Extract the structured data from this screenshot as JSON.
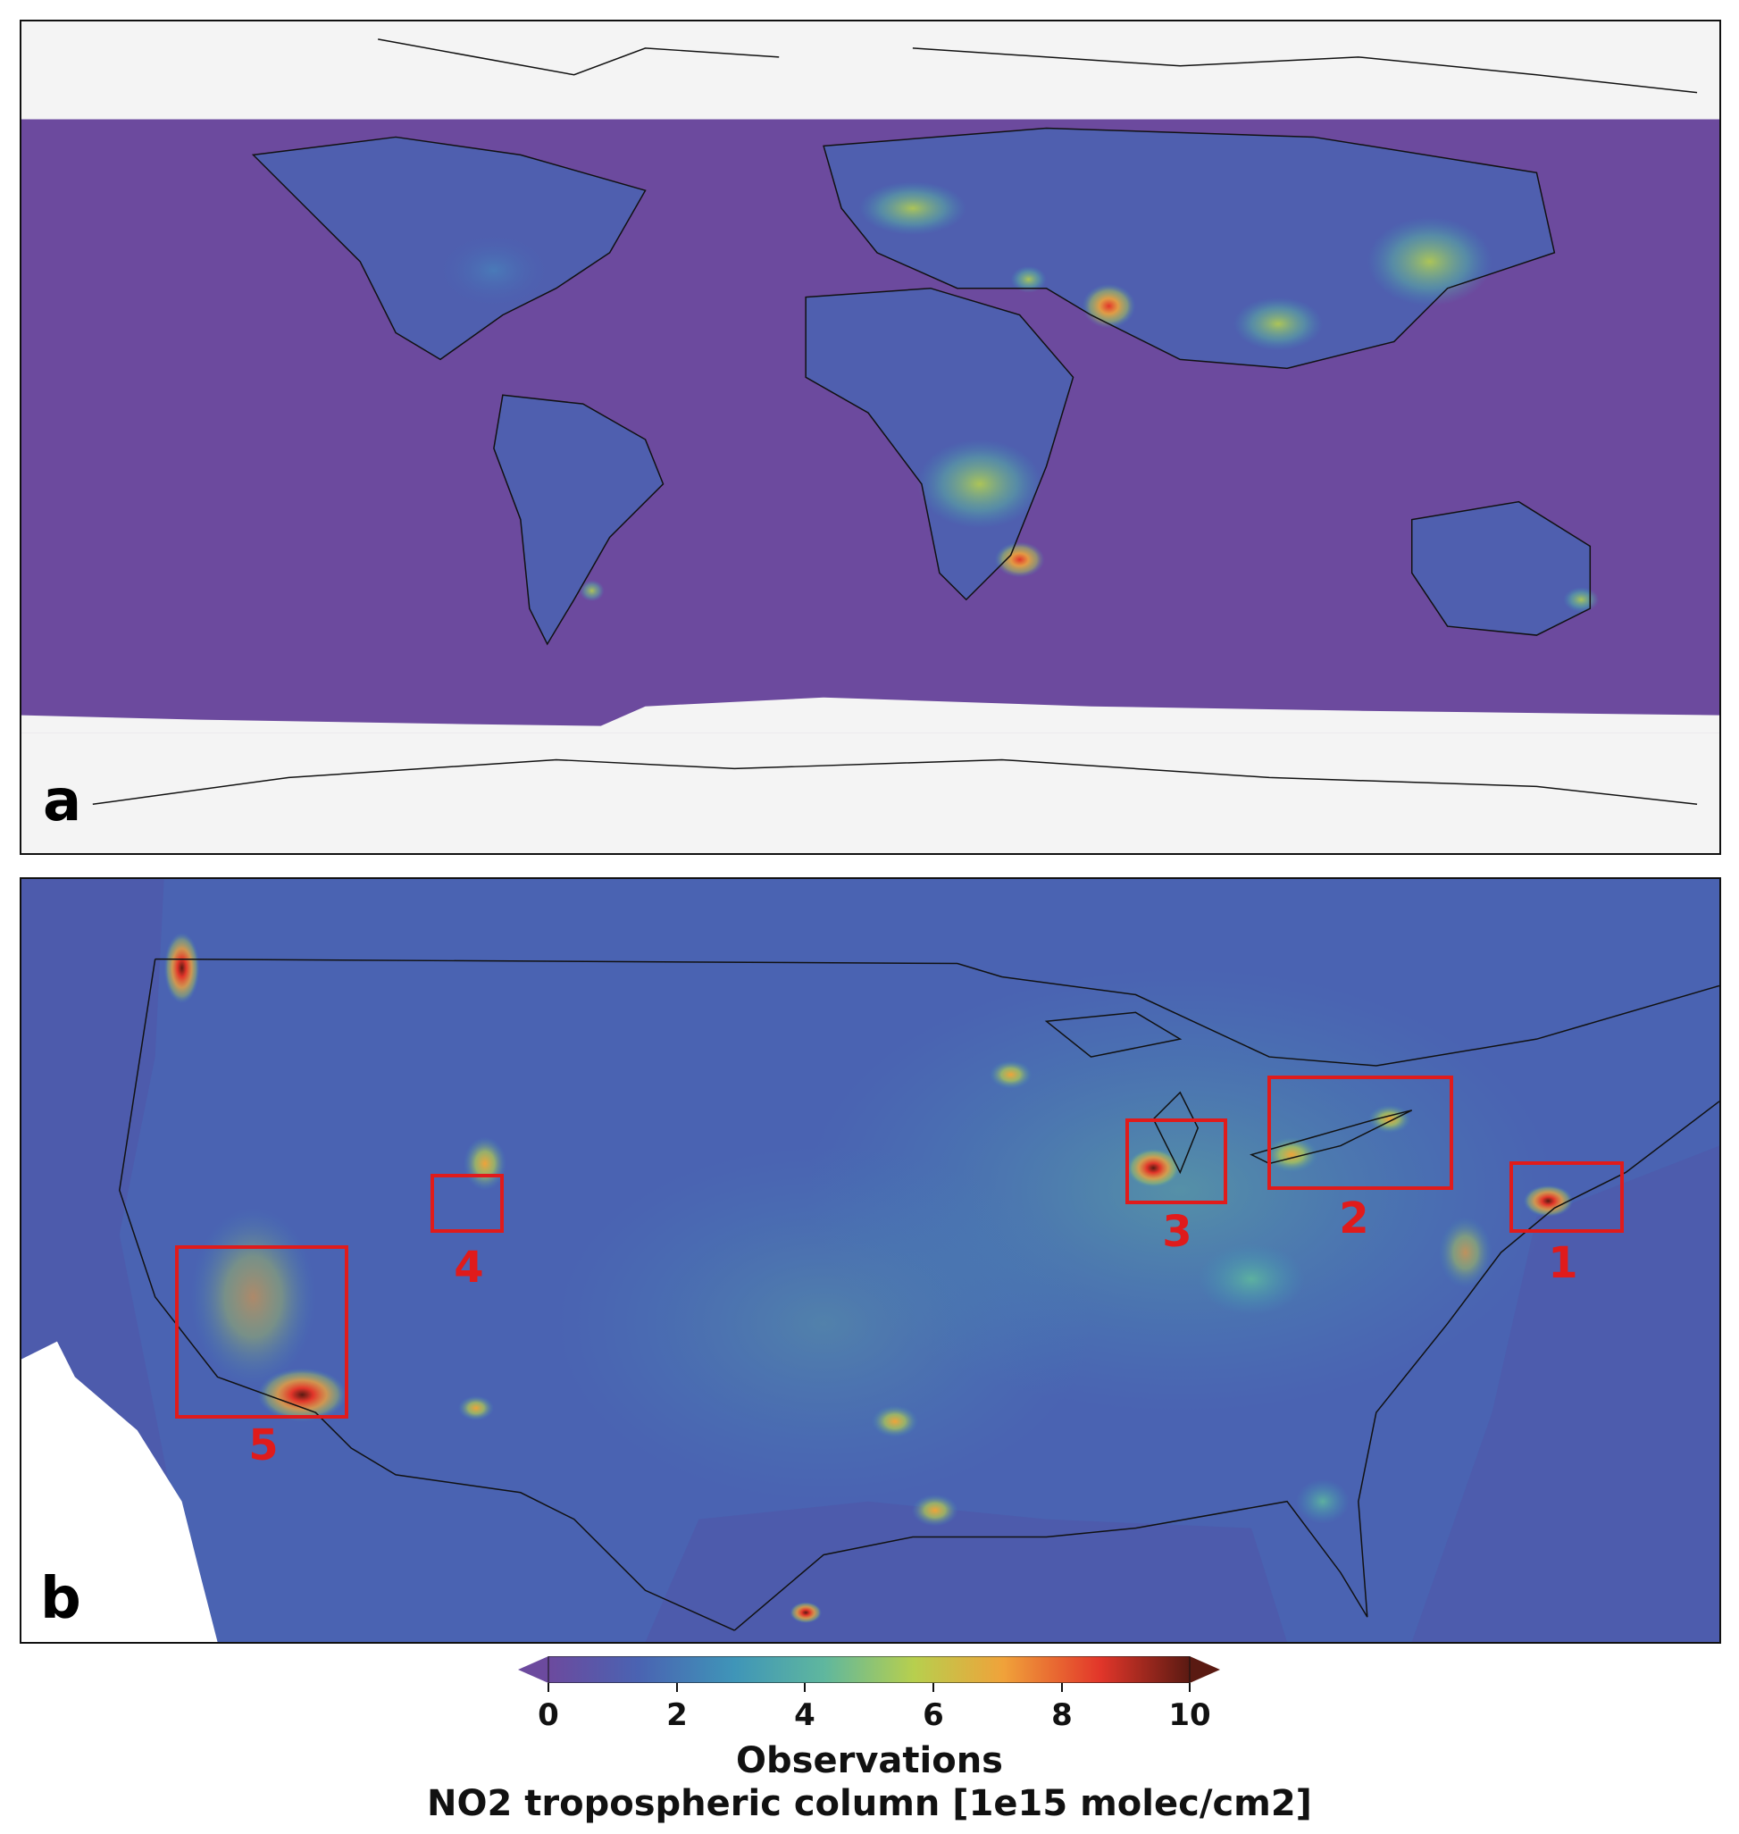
{
  "panels": {
    "a": {
      "label": "a"
    },
    "b": {
      "label": "b"
    }
  },
  "regions": [
    {
      "id": "1",
      "label": "1"
    },
    {
      "id": "2",
      "label": "2"
    },
    {
      "id": "3",
      "label": "3"
    },
    {
      "id": "4",
      "label": "4"
    },
    {
      "id": "5",
      "label": "5"
    }
  ],
  "colorbar": {
    "ticks": [
      "0",
      "2",
      "4",
      "6",
      "8",
      "10"
    ],
    "range": [
      0,
      10
    ],
    "title_line1": "Observations",
    "title_line2": "NO2 tropospheric column [1e15 molec/cm2]",
    "colors": [
      "#6c4a9e",
      "#4a63b2",
      "#3f95b8",
      "#5fb79e",
      "#b7cf4e",
      "#f0a23a",
      "#e2362a",
      "#5a1a12"
    ]
  },
  "colors": {
    "region_box": "#e01b1b",
    "background_low": "#6c4a9e",
    "conus_background": "#4a63b2"
  }
}
